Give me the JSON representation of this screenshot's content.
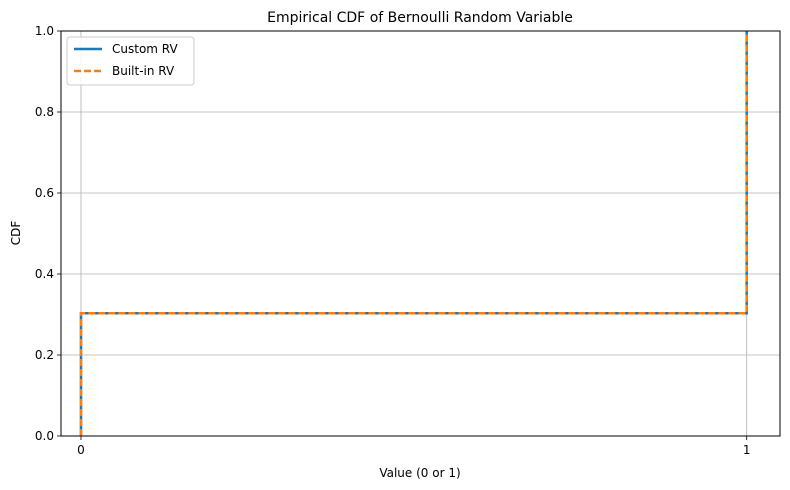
{
  "chart_data": {
    "type": "line",
    "title": "Empirical CDF of Bernoulli Random Variable",
    "xlabel": "Value (0 or 1)",
    "ylabel": "CDF",
    "xlim": [
      -0.03,
      1.05
    ],
    "ylim": [
      0,
      1
    ],
    "xticks": [
      0,
      1
    ],
    "xtick_labels": [
      "0",
      "1"
    ],
    "yticks": [
      0,
      0.2,
      0.4,
      0.6,
      0.8,
      1.0
    ],
    "ytick_labels": [
      "0.0",
      "0.2",
      "0.4",
      "0.6",
      "0.8",
      "1.0"
    ],
    "grid": true,
    "legend_position": "top-left",
    "series": [
      {
        "name": "Custom RV",
        "color": "#1f77b4",
        "style": "solid",
        "x": [
          0,
          0,
          1,
          1
        ],
        "y": [
          0,
          0.303,
          0.303,
          1.0
        ]
      },
      {
        "name": "Built-in RV",
        "color": "#ff7f0e",
        "style": "dashed",
        "x": [
          0,
          0,
          1,
          1
        ],
        "y": [
          0,
          0.303,
          0.303,
          1.0
        ]
      }
    ]
  }
}
